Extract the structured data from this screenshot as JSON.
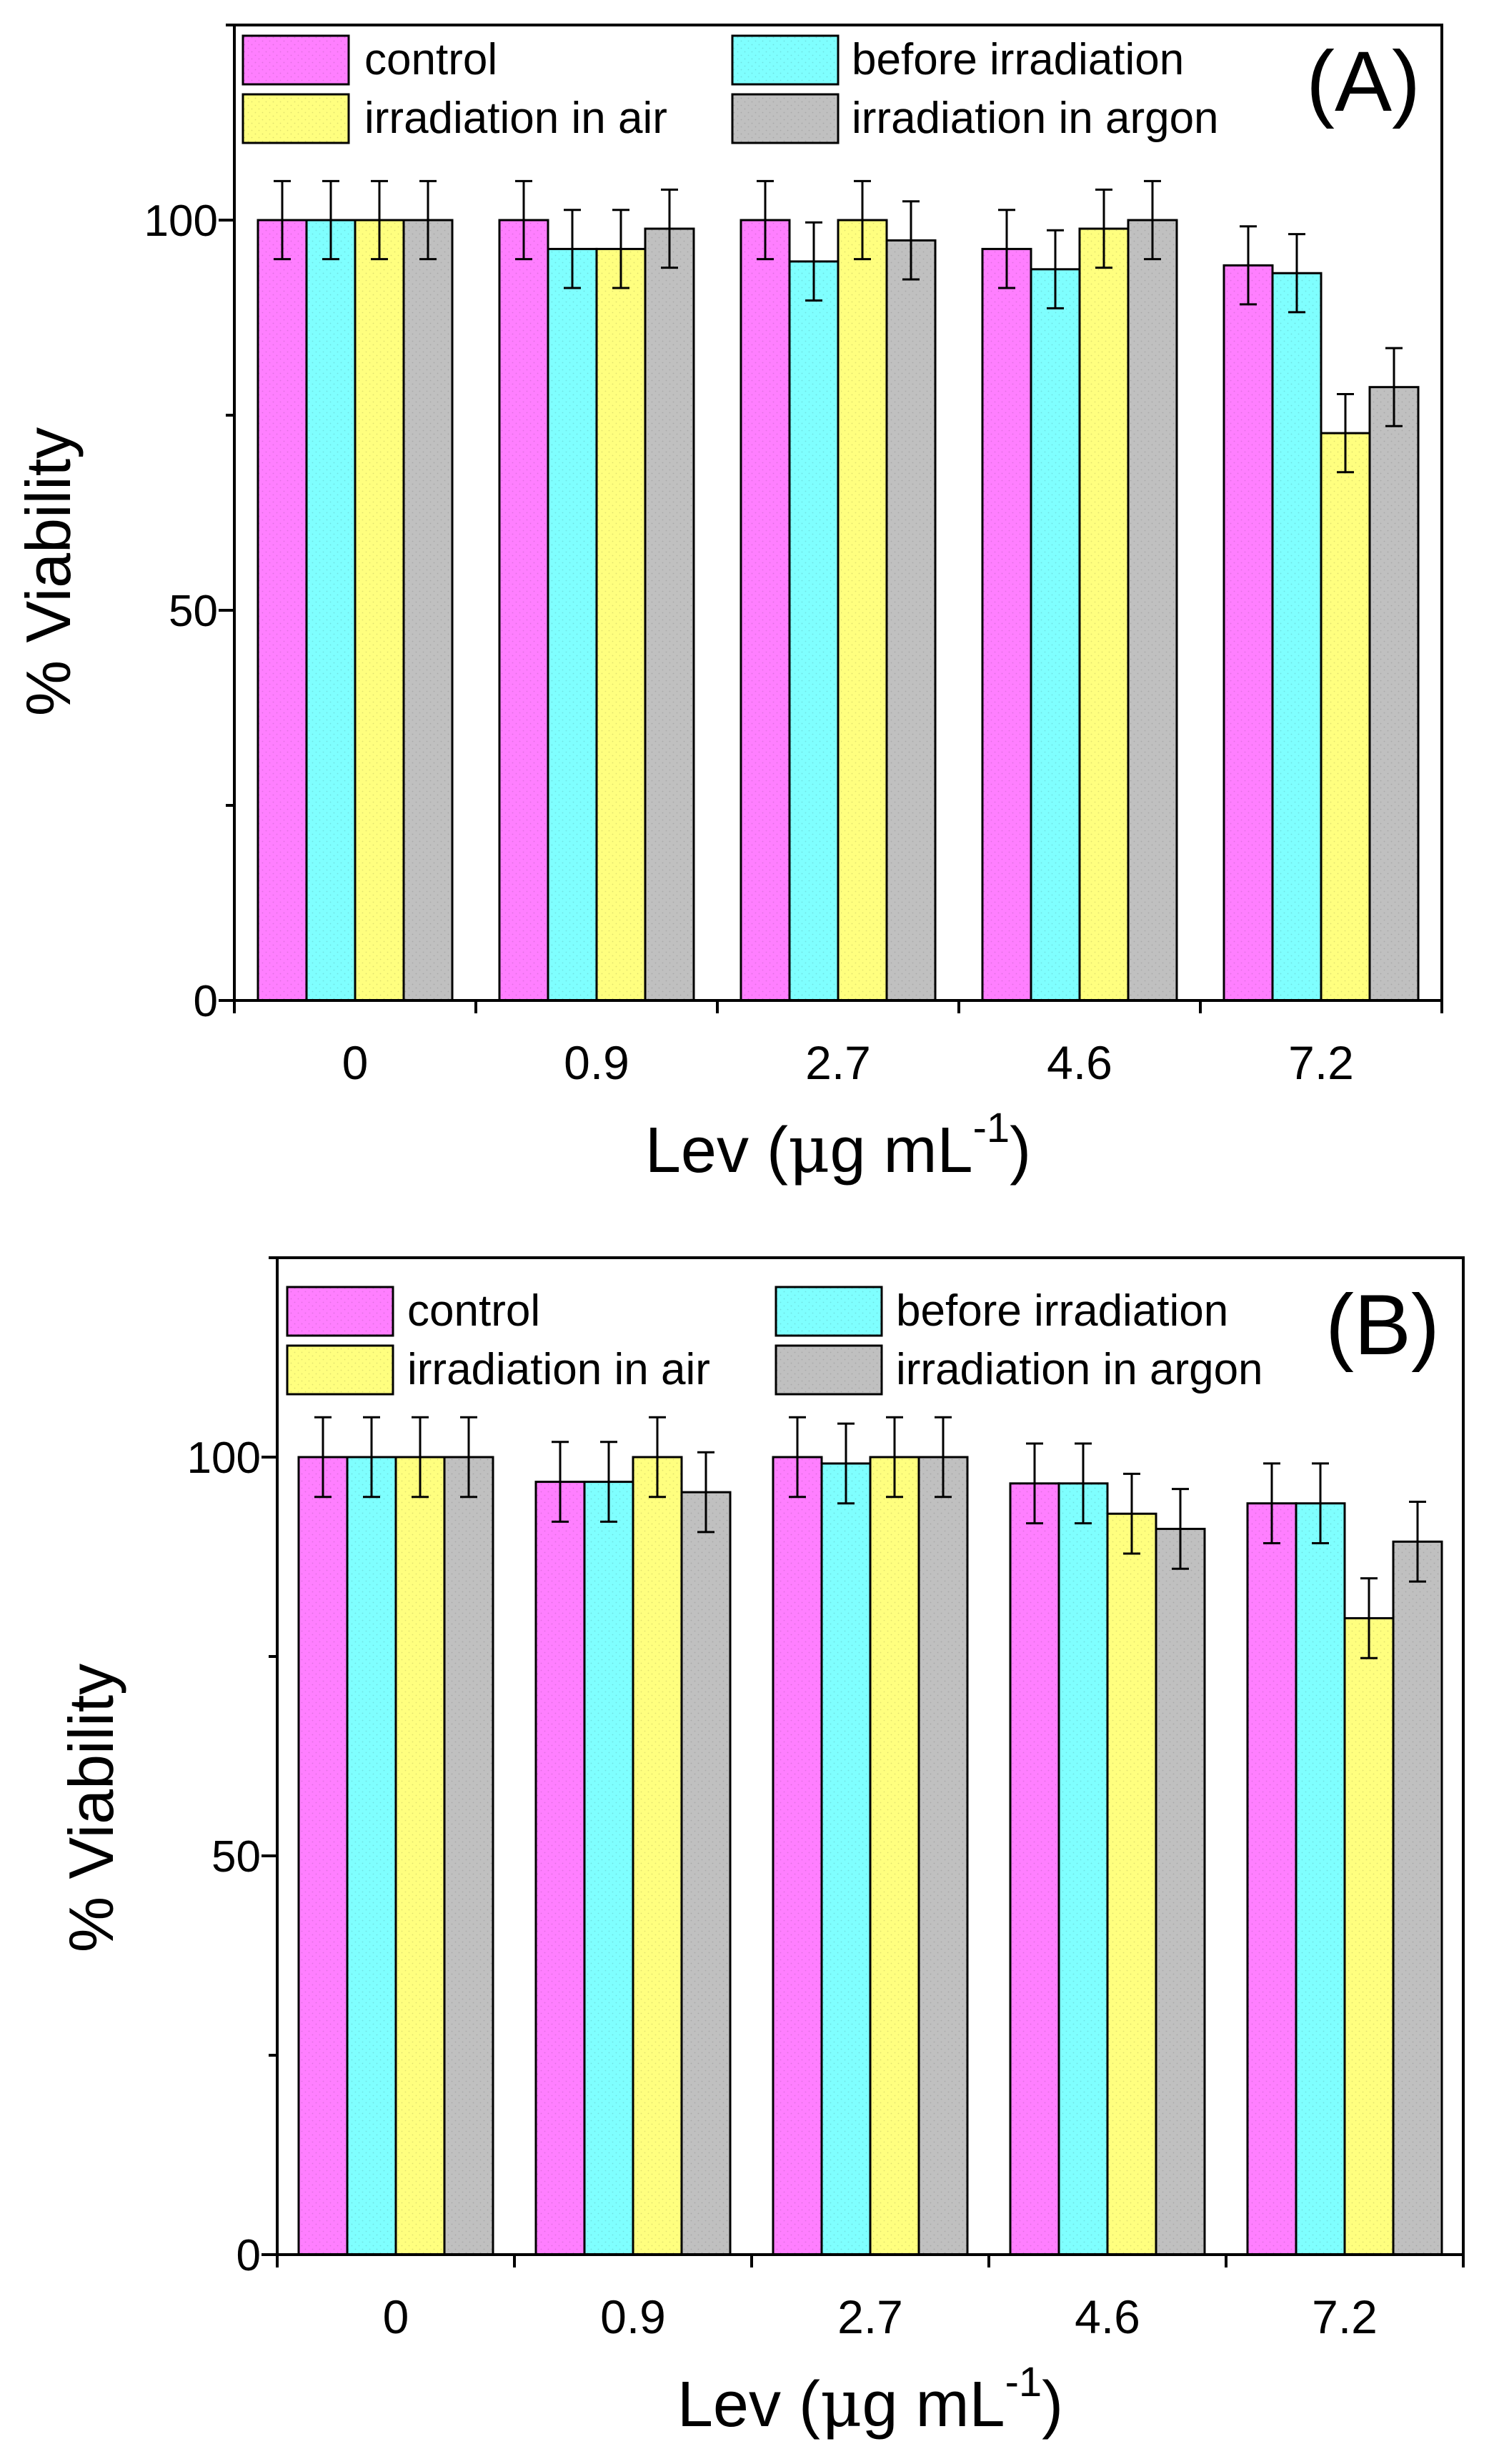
{
  "chart_data": [
    {
      "type": "bar",
      "panel_label": "(A)",
      "categories": [
        "0",
        "0.9",
        "2.7",
        "4.6",
        "7.2"
      ],
      "ylabel": "% Viability",
      "xlabel_main": "Lev (",
      "xlabel_mu": "μ",
      "xlabel_unit": "g mL",
      "xlabel_sup": "-1",
      "xlabel_close": ")",
      "ylim": [
        0,
        125
      ],
      "yticks": [
        0,
        50,
        100
      ],
      "legend_position": "top",
      "series": [
        {
          "name": "control",
          "color": "#ff7fff",
          "values": [
            100,
            100,
            100,
            96.3,
            94.2
          ],
          "errors": [
            5,
            5,
            5,
            5,
            5
          ]
        },
        {
          "name": "before irradiation",
          "color": "#7fffff",
          "values": [
            100,
            96.3,
            94.7,
            93.7,
            93.2
          ],
          "errors": [
            5,
            5,
            5,
            5,
            5
          ]
        },
        {
          "name": "irradiation in air",
          "color": "#ffff7f",
          "values": [
            100,
            96.3,
            100,
            98.9,
            72.7
          ],
          "errors": [
            5,
            5,
            5,
            5,
            5
          ]
        },
        {
          "name": "irradiation in argon",
          "color": "#c0c0c0",
          "values": [
            100,
            98.9,
            97.4,
            100,
            78.6
          ],
          "errors": [
            5,
            5,
            5,
            5,
            5
          ]
        }
      ]
    },
    {
      "type": "bar",
      "panel_label": "(B)",
      "categories": [
        "0",
        "0.9",
        "2.7",
        "4.6",
        "7.2"
      ],
      "ylabel": "% Viability",
      "xlabel_main": "Lev (",
      "xlabel_mu": "μ",
      "xlabel_unit": "g mL",
      "xlabel_sup": "-1",
      "xlabel_close": ")",
      "ylim": [
        0,
        125
      ],
      "yticks": [
        0,
        50,
        100
      ],
      "legend_position": "top",
      "series": [
        {
          "name": "control",
          "color": "#ff7fff",
          "values": [
            100,
            96.9,
            100,
            96.7,
            94.2
          ],
          "errors": [
            5,
            5,
            5,
            5,
            5
          ]
        },
        {
          "name": "before irradiation",
          "color": "#7fffff",
          "values": [
            100,
            96.9,
            99.2,
            96.7,
            94.2
          ],
          "errors": [
            5,
            5,
            5,
            5,
            5
          ]
        },
        {
          "name": "irradiation in air",
          "color": "#ffff7f",
          "values": [
            100,
            100,
            100,
            92.9,
            79.8
          ],
          "errors": [
            5,
            5,
            5,
            5,
            5
          ]
        },
        {
          "name": "irradiation in argon",
          "color": "#c0c0c0",
          "values": [
            100,
            95.6,
            100,
            91.0,
            89.4
          ],
          "errors": [
            5,
            5,
            5,
            5,
            5
          ]
        }
      ]
    }
  ]
}
